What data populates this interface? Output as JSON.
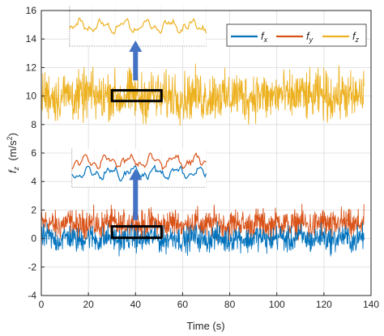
{
  "chart_data": {
    "type": "line",
    "title": "",
    "xlabel": "Time (s)",
    "ylabel": {
      "main": "f",
      "sub": "z",
      "unit_open": "  (m/s",
      "unit_sup": "2",
      "unit_close": ")"
    },
    "xlim": [
      0,
      140
    ],
    "ylim": [
      -4,
      16
    ],
    "xticks": [
      "0",
      "20",
      "40",
      "60",
      "80",
      "100",
      "120",
      "140"
    ],
    "yticks": [
      "-4",
      "-2",
      "0",
      "2",
      "4",
      "6",
      "8",
      "10",
      "12",
      "14",
      "16"
    ],
    "grid": true,
    "legend_position": "top-right",
    "series": [
      {
        "name": "f",
        "sub": "x",
        "color": "#0072BD",
        "x_range": [
          0,
          137
        ],
        "mean": 0.0,
        "amplitude": 1.3,
        "min": -2.4,
        "max": 1.6
      },
      {
        "name": "f",
        "sub": "y",
        "color": "#D95319",
        "x_range": [
          0,
          137
        ],
        "mean": 1.0,
        "amplitude": 1.5,
        "min": -0.8,
        "max": 3.6
      },
      {
        "name": "f",
        "sub": "z",
        "color": "#EDB120",
        "x_range": [
          0,
          137
        ],
        "mean": 10.0,
        "amplitude": 2.5,
        "min": 6.3,
        "max": 13.8
      }
    ],
    "annotations": {
      "zoom_boxes": [
        {
          "x": [
            30,
            51
          ],
          "y": [
            9.65,
            10.4
          ],
          "color": "#000000"
        },
        {
          "x": [
            30,
            51
          ],
          "y": [
            0.05,
            0.85
          ],
          "color": "#000000"
        }
      ],
      "arrows": [
        {
          "x": 40,
          "y_from": 11.1,
          "y_to": 13.9,
          "color": "#4472C4"
        },
        {
          "x": 40,
          "y_from": 1.3,
          "y_to": 4.9,
          "color": "#4472C4"
        }
      ],
      "insets": [
        {
          "series": [
            "f_z"
          ],
          "x": [
            12,
            70
          ],
          "y": [
            13.5,
            16.3
          ]
        },
        {
          "series": [
            "f_x",
            "f_y"
          ],
          "x": [
            13,
            70
          ],
          "y": [
            3.6,
            6.3
          ]
        }
      ]
    }
  }
}
